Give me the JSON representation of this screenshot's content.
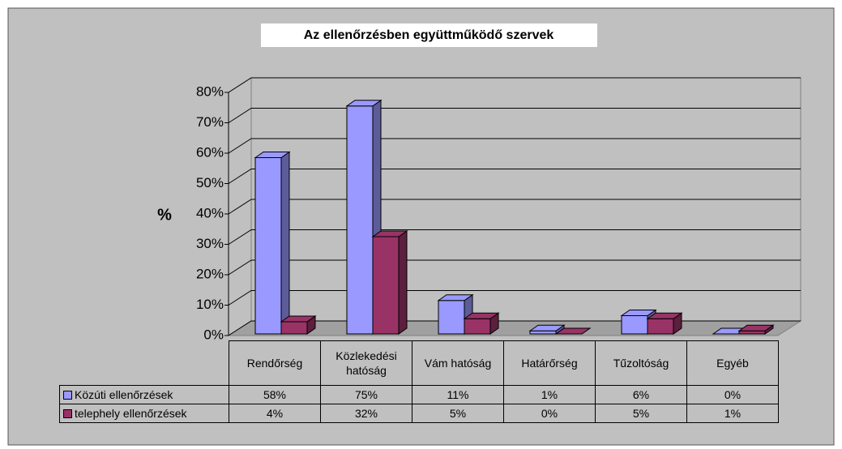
{
  "chart_data": {
    "type": "bar3d",
    "title": "Az ellenőrzésben együttműködő szervek",
    "ylabel": "%",
    "categories": [
      "Rendőrség",
      "Közlekedési hatóság",
      "Vám hatóság",
      "Határőrség",
      "Tűzoltóság",
      "Egyéb"
    ],
    "series": [
      {
        "name": "Közúti ellenőrzések",
        "color": "#9999ff",
        "side_color": "#5c5c99",
        "values": [
          58,
          75,
          11,
          1,
          6,
          0
        ],
        "value_labels": [
          "58%",
          "75%",
          "11%",
          "1%",
          "6%",
          "0%"
        ]
      },
      {
        "name": "telephely ellenőrzések",
        "color": "#993366",
        "side_color": "#5c1f3d",
        "values": [
          4,
          32,
          5,
          0,
          5,
          1
        ],
        "value_labels": [
          "4%",
          "32%",
          "5%",
          "0%",
          "5%",
          "1%"
        ]
      }
    ],
    "ylim": [
      0,
      80
    ],
    "yticks": [
      {
        "value": 0,
        "label": "0%"
      },
      {
        "value": 10,
        "label": "10%"
      },
      {
        "value": 20,
        "label": "20%"
      },
      {
        "value": 30,
        "label": "30%"
      },
      {
        "value": 40,
        "label": "40%"
      },
      {
        "value": 50,
        "label": "50%"
      },
      {
        "value": 60,
        "label": "60%"
      },
      {
        "value": 70,
        "label": "70%"
      },
      {
        "value": 80,
        "label": "80%"
      }
    ],
    "grid": true,
    "data_table": true
  }
}
